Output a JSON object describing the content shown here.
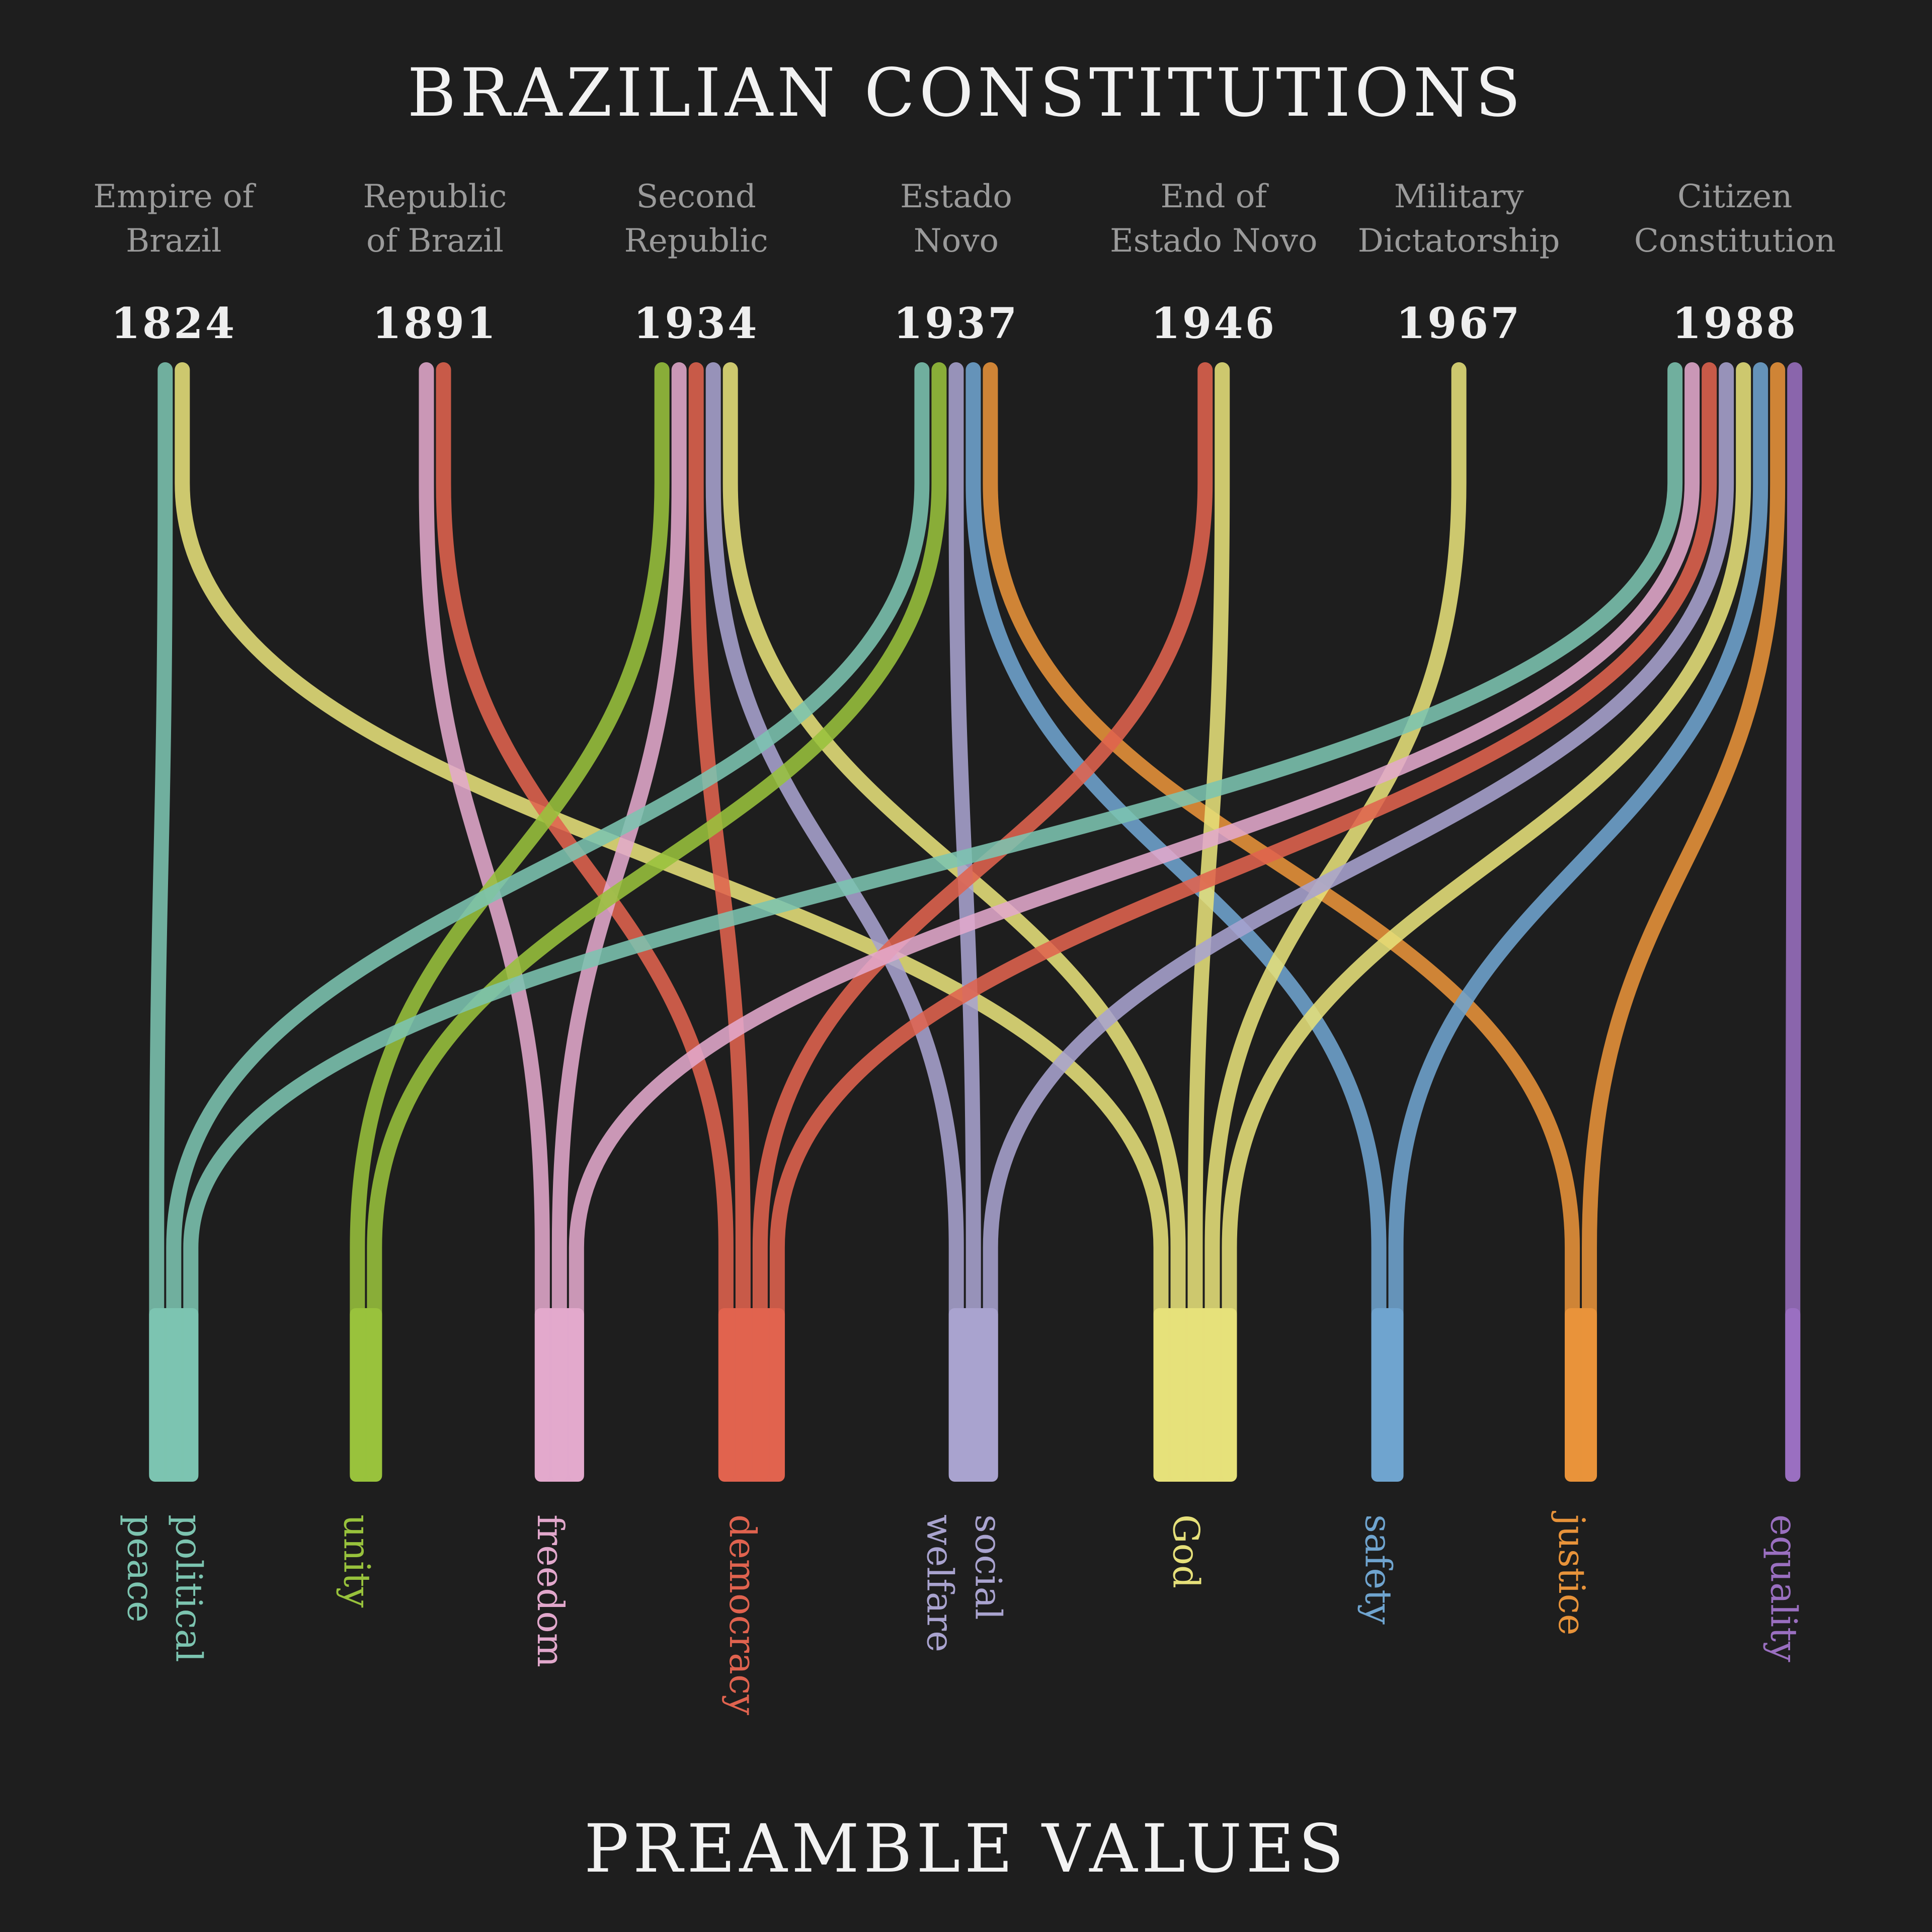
{
  "title": "BRAZILIAN CONSTITUTIONS",
  "subtitle": "PREAMBLE VALUES",
  "constitutions": [
    {
      "name": [
        "Empire of",
        "Brazil"
      ],
      "year": "1824"
    },
    {
      "name": [
        "Republic",
        "of Brazil"
      ],
      "year": "1891"
    },
    {
      "name": [
        "Second",
        "Republic"
      ],
      "year": "1934"
    },
    {
      "name": [
        "Estado",
        "Novo"
      ],
      "year": "1937"
    },
    {
      "name": [
        "End of",
        "Estado Novo"
      ],
      "year": "1946"
    },
    {
      "name": [
        "Military",
        "Dictatorship"
      ],
      "year": "1967"
    },
    {
      "name": [
        "Citizen",
        "Constitution"
      ],
      "year": "1988"
    }
  ],
  "values": [
    {
      "lines": [
        "political",
        "peace"
      ],
      "color": "#7cc4b0"
    },
    {
      "lines": [
        "unity"
      ],
      "color": "#98c23c"
    },
    {
      "lines": [
        "freedom"
      ],
      "color": "#e2a8cc"
    },
    {
      "lines": [
        "democracy"
      ],
      "color": "#e0634f"
    },
    {
      "lines": [
        "social",
        "welfare"
      ],
      "color": "#a9a3cf"
    },
    {
      "lines": [
        "God"
      ],
      "color": "#e6e07a"
    },
    {
      "lines": [
        "safety"
      ],
      "color": "#6fa4cf"
    },
    {
      "lines": [
        "justice"
      ],
      "color": "#e8933a"
    },
    {
      "lines": [
        "equality"
      ],
      "color": "#9a6fc0"
    }
  ],
  "links": [
    {
      "from": 0,
      "to": 0
    },
    {
      "from": 0,
      "to": 5
    },
    {
      "from": 1,
      "to": 2
    },
    {
      "from": 1,
      "to": 3
    },
    {
      "from": 2,
      "to": 1
    },
    {
      "from": 2,
      "to": 2
    },
    {
      "from": 2,
      "to": 3
    },
    {
      "from": 2,
      "to": 4
    },
    {
      "from": 2,
      "to": 5
    },
    {
      "from": 3,
      "to": 0
    },
    {
      "from": 3,
      "to": 1
    },
    {
      "from": 3,
      "to": 4
    },
    {
      "from": 3,
      "to": 6
    },
    {
      "from": 3,
      "to": 7
    },
    {
      "from": 4,
      "to": 3
    },
    {
      "from": 4,
      "to": 5
    },
    {
      "from": 5,
      "to": 5
    },
    {
      "from": 6,
      "to": 0
    },
    {
      "from": 6,
      "to": 2
    },
    {
      "from": 6,
      "to": 3
    },
    {
      "from": 6,
      "to": 4
    },
    {
      "from": 6,
      "to": 5
    },
    {
      "from": 6,
      "to": 6
    },
    {
      "from": 6,
      "to": 7
    },
    {
      "from": 6,
      "to": 8
    }
  ]
}
